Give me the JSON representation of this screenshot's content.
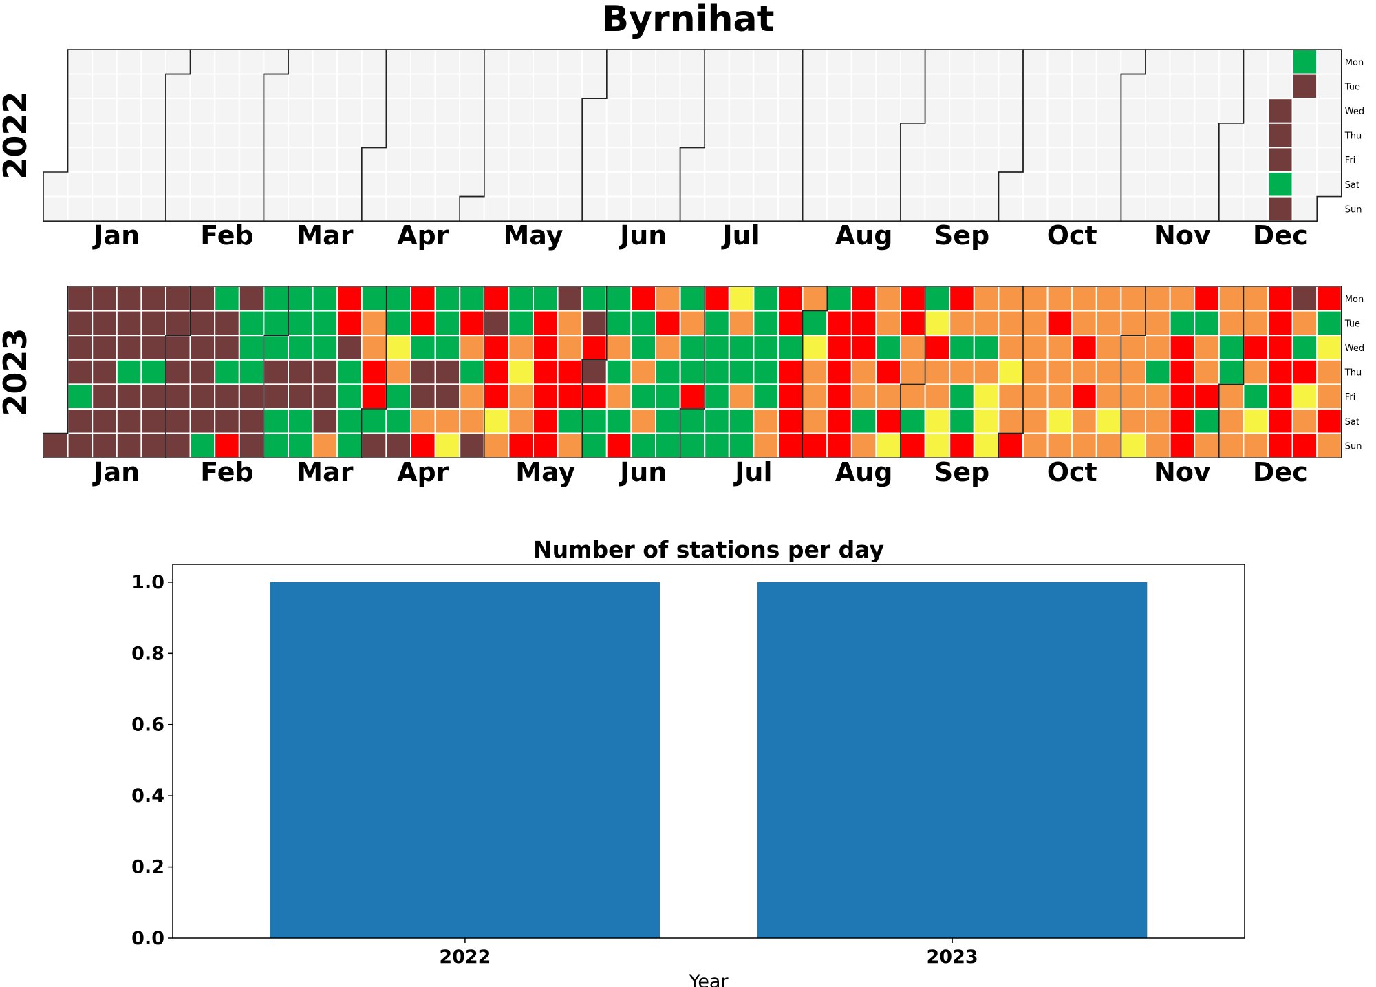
{
  "title": "Byrnihat",
  "colors": {
    "Good": "#00b050",
    "Satisfactory": "#f7f343",
    "Moderate": "#f79646",
    "Poor": "#ff0000",
    "Very Poor": "#733c3c",
    "Severe": "#669900",
    "missing": "#f4f4f4",
    "bar": "#1f77b4"
  },
  "chart_data": [
    {
      "type": "heatmap",
      "subtype": "calendar",
      "year": 2022,
      "month_labels": [
        "Jan",
        "Feb",
        "Mar",
        "Apr",
        "May",
        "Jun",
        "Jul",
        "Aug",
        "Sep",
        "Oct",
        "Nov",
        "Dec"
      ],
      "weekday_labels": [
        "Mon",
        "Tue",
        "Wed",
        "Thu",
        "Fri",
        "Sat",
        "Sun"
      ],
      "first_weekday_index": 5,
      "days": "...........................................................................................................................................................................................................................................................................................................................................................VVVGVGV"
    },
    {
      "type": "heatmap",
      "subtype": "calendar",
      "year": 2023,
      "month_labels": [
        "Jan",
        "Feb",
        "Mar",
        "Apr",
        "May",
        "Jun",
        "Jul",
        "Aug",
        "Sep",
        "Oct",
        "Nov",
        "Dec"
      ],
      "weekday_labels": [
        "Mon",
        "Tue",
        "Wed",
        "Thu",
        "Fri",
        "Sat",
        "Sun"
      ],
      "first_weekday_index": 6,
      "days": "VVVVVGVVVVVVVVVVVVGVVVVVVGVVVVVVVVVVVVVVVVGGVVGVVPVGGGVVVGGGVVGGGGGVVGGGGGVVVMPPVGGGGGMMPPGVGGSMGGVPPGVVMPGGGVVMSGPMGMMVPVPPPSMGGMSMMPGPPPPPPVMMPPGMGVPVPGGGGMGMGPPGGMGMGMPMGGGGGMGGPGGPGGGGGGSMGGMGGGGGGGMMPPGPPPPMGSMMMPGPPPPPPPPPMMGMMMGPMPSPPMMMGPGSPMMSSPMGMGGPMMGMSSSMMMSMMPMMMMMMMMPMMMSMMMPMPMMMMMMMSMMMMMMMSMMMGMMMMGPPPPPPGMMPGMMMGGMMMMMPMGSMPPPPPPPVMGPSMPPGSMMPMGPVPGGPPPPMPMGPPPPPPPPPPPPPPPPPPPPPPPPPVPPPGPPVPVSPPVVGVPPPPPVVVVPVVVPVVGPPVPMMVVPPPVGPPGVPPPPPPMMMMMPPPPPPPVV"
    },
    {
      "type": "bar",
      "title": "Number of stations per day",
      "categories": [
        "2022",
        "2023"
      ],
      "values": [
        1,
        1
      ],
      "xlabel": "Year",
      "ylabel": "",
      "ylim": [
        0,
        1.05
      ],
      "yticks": [
        "0.0",
        "0.2",
        "0.4",
        "0.6",
        "0.8",
        "1.0"
      ]
    }
  ]
}
